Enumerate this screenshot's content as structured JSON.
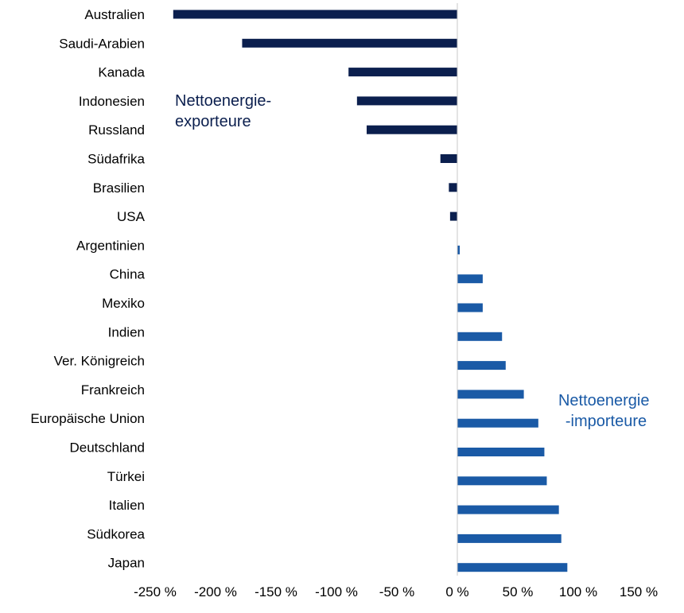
{
  "chart_data": {
    "type": "bar",
    "orientation": "horizontal",
    "categories": [
      "Australien",
      "Saudi-Arabien",
      "Kanada",
      "Indonesien",
      "Russland",
      "Südafrika",
      "Brasilien",
      "USA",
      "Argentinien",
      "China",
      "Mexiko",
      "Indien",
      "Ver. Königreich",
      "Frankreich",
      "Europäische Union",
      "Deutschland",
      "Türkei",
      "Italien",
      "Südkorea",
      "Japan"
    ],
    "values": [
      -235,
      -178,
      -90,
      -83,
      -75,
      -14,
      -7,
      -6,
      2,
      21,
      21,
      37,
      40,
      55,
      67,
      72,
      74,
      84,
      86,
      91
    ],
    "xlim": [
      -250,
      150
    ],
    "xticks": [
      -250,
      -200,
      -150,
      -100,
      -50,
      0,
      50,
      100,
      150
    ],
    "xtick_labels": [
      "-250 %",
      "-200 %",
      "-150 %",
      "-100 %",
      "-50 %",
      "0 %",
      "50 %",
      "100 %",
      "150 %"
    ],
    "title": "",
    "xlabel": "",
    "ylabel": "",
    "grid": false,
    "legend": "none",
    "annotations": [
      {
        "lines": [
          "Nettoenergie-",
          "exporteure"
        ],
        "color": "#0b1f4e"
      },
      {
        "lines": [
          "Nettoenergie",
          "-importeure"
        ],
        "color": "#1a5aa6"
      }
    ],
    "colors": {
      "exporters": "#0b1f4e",
      "importers": "#1a5aa6"
    }
  }
}
